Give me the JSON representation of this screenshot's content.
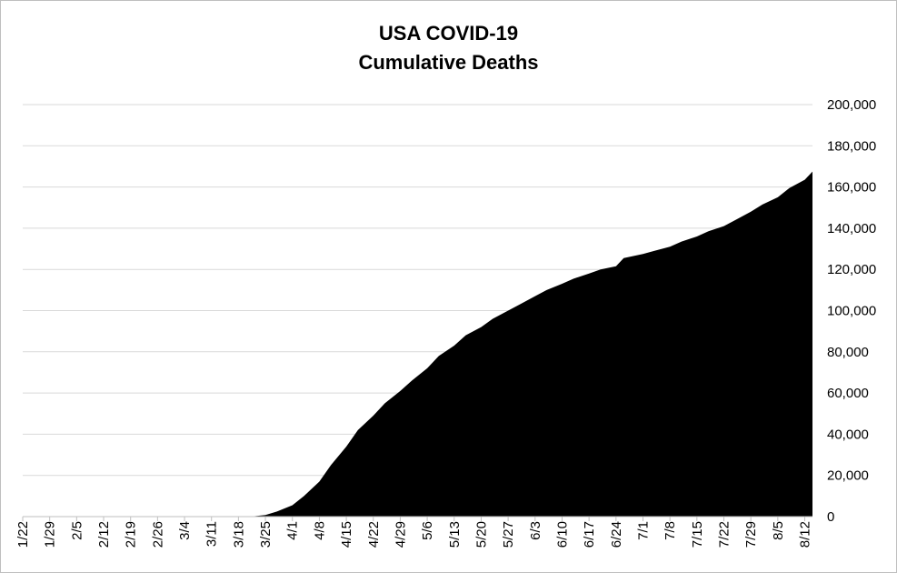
{
  "chart_data": {
    "type": "area",
    "title": "USA COVID-19",
    "subtitle": "Cumulative Deaths",
    "xlabel": "",
    "ylabel": "",
    "ylim": [
      0,
      200000
    ],
    "yticks": [
      0,
      20000,
      40000,
      60000,
      80000,
      100000,
      120000,
      140000,
      160000,
      180000,
      200000
    ],
    "ytick_labels": [
      "0",
      "20,000",
      "40,000",
      "60,000",
      "80,000",
      "100,000",
      "120,000",
      "140,000",
      "160,000",
      "180,000",
      "200,000"
    ],
    "xtick_labels": [
      "1/22",
      "1/29",
      "2/5",
      "2/12",
      "2/19",
      "2/26",
      "3/4",
      "3/11",
      "3/18",
      "3/25",
      "4/1",
      "4/8",
      "4/15",
      "4/22",
      "4/29",
      "5/6",
      "5/13",
      "5/20",
      "5/27",
      "6/3",
      "6/10",
      "6/17",
      "6/24",
      "7/1",
      "7/8",
      "7/15",
      "7/22",
      "7/29",
      "8/5",
      "8/12"
    ],
    "x_start": "1/22",
    "x_end": "8/14",
    "grid": true,
    "legend": "none",
    "fill_color": "#000000",
    "series": [
      {
        "x": [
          "1/22",
          "3/21",
          "3/25",
          "3/28",
          "4/1",
          "4/4",
          "4/8",
          "4/11",
          "4/15",
          "4/18",
          "4/22",
          "4/25",
          "4/29",
          "5/2",
          "5/6",
          "5/9",
          "5/13",
          "5/16",
          "5/20",
          "5/23",
          "5/27",
          "5/30",
          "6/3",
          "6/6",
          "6/10",
          "6/13",
          "6/17",
          "6/20",
          "6/24",
          "6/26",
          "7/1",
          "7/4",
          "7/8",
          "7/11",
          "7/15",
          "7/18",
          "7/22",
          "7/25",
          "7/29",
          "8/1",
          "8/5",
          "8/8",
          "8/12",
          "8/14"
        ],
        "values": [
          0,
          0,
          800,
          2500,
          5500,
          10000,
          17000,
          25000,
          34000,
          42000,
          49000,
          55000,
          61000,
          66000,
          72000,
          78000,
          83000,
          88000,
          92000,
          96000,
          100000,
          103000,
          107000,
          110000,
          113000,
          115500,
          118000,
          120000,
          121500,
          125500,
          127500,
          129000,
          131000,
          133500,
          136000,
          138500,
          141000,
          144000,
          148000,
          151500,
          155000,
          159500,
          163500,
          167500
        ]
      }
    ]
  }
}
